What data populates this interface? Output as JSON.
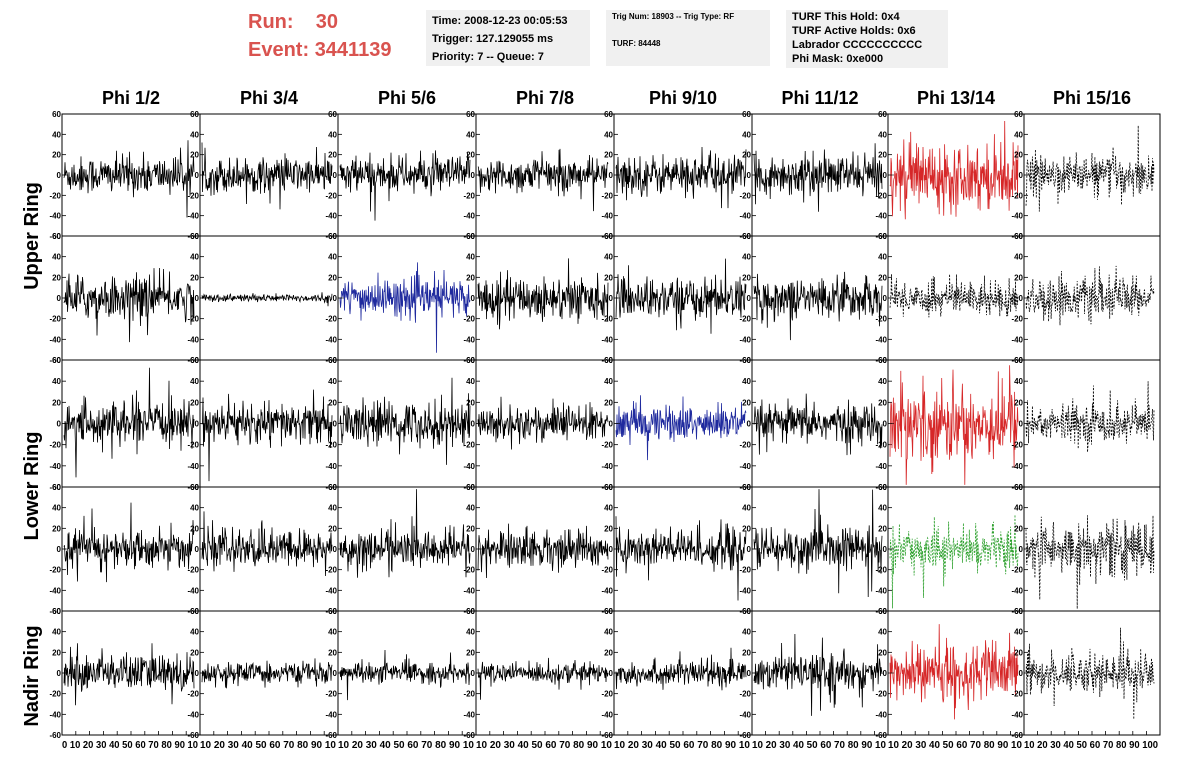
{
  "header": {
    "run_label": "Run:",
    "run_value": "30",
    "event_label": "Event:",
    "event_value": "3441139"
  },
  "info_time": {
    "time": "Time: 2008-12-23 00:05:53",
    "trigger": "Trigger: 127.129055 ms",
    "priority": "Priority: 7 -- Queue: 7"
  },
  "info_trig": {
    "trig": "Trig Num: 18903 -- Trig Type: RF",
    "turf": "TURF: 84448"
  },
  "info_turf": {
    "hold": "TURF This Hold: 0x4",
    "active": "TURF Active Holds: 0x6",
    "labrador": "Labrador CCCCCCCCCC",
    "phimask": "Phi Mask: 0xe000"
  },
  "colors": {
    "normal": "#000000",
    "red": "#d62728",
    "blue": "#1f2a9e",
    "green": "#2ca02c",
    "dashed": "#000000",
    "header_red": "#d9534f"
  },
  "chart_data": {
    "type": "line",
    "columns": [
      "Phi 1/2",
      "Phi 3/4",
      "Phi 5/6",
      "Phi 7/8",
      "Phi 9/10",
      "Phi 11/12",
      "Phi 13/14",
      "Phi 15/16"
    ],
    "ring_labels": [
      "Upper Ring",
      "Lower Ring",
      "Nadir Ring"
    ],
    "ylim": [
      -60,
      60
    ],
    "y_ticks": [
      60,
      40,
      20,
      0,
      -20,
      -40,
      -60
    ],
    "xlim": [
      0,
      100
    ],
    "x_tick_label_strings": [
      "0 10 20 30 40 50 60 70 80 90 10",
      "10 20 30 40 50 60 70 80 90 10",
      "10 20 30 40 50 60 70 80 90 10",
      "10 20 30 40 50 60 70 80 90 10",
      "10 20 30 40 50 60 70 80 90 10",
      "10 20 30 40 50 60 70 80 90 10",
      "10 20 30 40 50 60 70 80 90 10",
      "10 20 30 40 50 60 70 80 90 100"
    ],
    "panels": [
      [
        "normal",
        "normal",
        "normal",
        "normal",
        "normal",
        "normal",
        "red",
        "dashed"
      ],
      [
        "normal",
        "normal",
        "blue",
        "normal",
        "normal",
        "normal",
        "dashed",
        "dashed"
      ],
      [
        "normal",
        "normal",
        "normal",
        "normal",
        "blue",
        "normal",
        "red",
        "dashed"
      ],
      [
        "normal",
        "normal",
        "normal",
        "normal",
        "normal",
        "normal",
        "green",
        "dashed"
      ],
      [
        "normal",
        "normal",
        "normal",
        "normal",
        "normal",
        "normal",
        "red",
        "dashed"
      ]
    ],
    "amplitudes": [
      [
        15,
        14,
        15,
        14,
        16,
        16,
        26,
        16
      ],
      [
        17,
        3,
        15,
        17,
        16,
        16,
        14,
        16
      ],
      [
        16,
        16,
        17,
        14,
        14,
        15,
        30,
        15
      ],
      [
        15,
        15,
        15,
        15,
        16,
        17,
        16,
        22
      ],
      [
        15,
        8,
        8,
        8,
        10,
        14,
        22,
        16
      ]
    ]
  }
}
